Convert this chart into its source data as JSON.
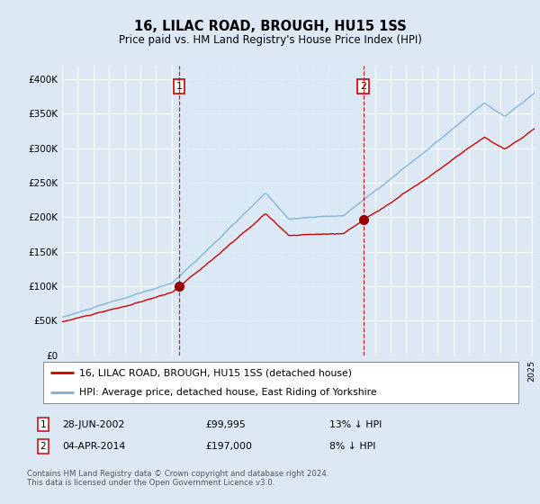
{
  "title": "16, LILAC ROAD, BROUGH, HU15 1SS",
  "subtitle": "Price paid vs. HM Land Registry's House Price Index (HPI)",
  "background_color": "#dce9f5",
  "sale1_date": 2002.49,
  "sale1_price": 99995,
  "sale2_date": 2014.26,
  "sale2_price": 197000,
  "ylim": [
    0,
    420000
  ],
  "xlim_start": 1995.0,
  "xlim_end": 2025.2,
  "legend_label_red": "16, LILAC ROAD, BROUGH, HU15 1SS (detached house)",
  "legend_label_blue": "HPI: Average price, detached house, East Riding of Yorkshire",
  "footer": "Contains HM Land Registry data © Crown copyright and database right 2024.\nThis data is licensed under the Open Government Licence v3.0.",
  "red_color": "#cc0000",
  "blue_color": "#7ab0d4",
  "shade_color": "#daeaf5",
  "hpi_seed": 10,
  "red_seed": 77
}
